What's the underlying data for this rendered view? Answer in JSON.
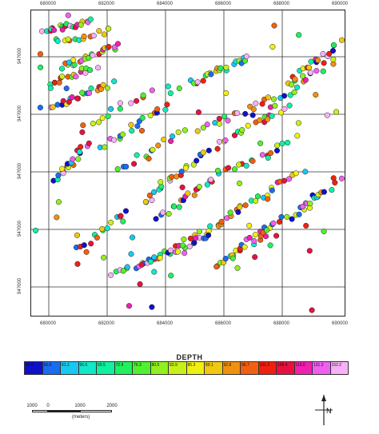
{
  "map": {
    "x_ticks": [
      "680000",
      "682000",
      "684000",
      "686000",
      "688000",
      "690000"
    ],
    "y_ticks": [
      "94?000",
      "94?000",
      "94?000",
      "94?000",
      "94?000"
    ],
    "grid": true
  },
  "legend": {
    "title": "DEPTH",
    "values": [
      "46.8",
      "56.0",
      "61.1",
      "66.6",
      "69.5",
      "72.9",
      "76.3",
      "80.5",
      "83.9",
      "85.3",
      "89.1",
      "92.8",
      "96.7",
      "101.3",
      "109.4",
      "119.0",
      "131.2",
      "152.2"
    ],
    "colors": [
      "#1010c8",
      "#1a6cf0",
      "#18c8f0",
      "#10e8c8",
      "#10f0a0",
      "#20f060",
      "#50f030",
      "#90f020",
      "#c8f018",
      "#f0f010",
      "#f0c810",
      "#f09010",
      "#f06010",
      "#f02010",
      "#e81040",
      "#f020b0",
      "#f060f0",
      "#f8b0f8"
    ]
  },
  "scale_bar": {
    "labels": [
      "1000",
      "0",
      "1000",
      "2000"
    ],
    "unit": "(meters)"
  },
  "north_arrow": {
    "label": "N",
    "icon": "north-arrow-icon"
  }
}
